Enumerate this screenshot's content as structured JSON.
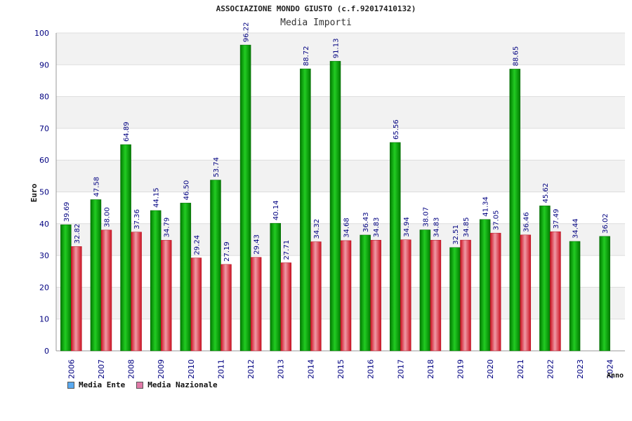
{
  "chart_data": {
    "type": "bar",
    "title": "ASSOCIAZIONE MONDO GIUSTO (c.f.92017410132)",
    "subtitle": "Media Importi",
    "xlabel": "Anno",
    "ylabel": "Euro",
    "ylim": [
      0,
      100
    ],
    "yticks": [
      "0",
      "10",
      "20",
      "30",
      "40",
      "50",
      "60",
      "70",
      "80",
      "90",
      "100"
    ],
    "grid": true,
    "legend_position": "bottom-left",
    "categories": [
      "2006",
      "2007",
      "2008",
      "2009",
      "2010",
      "2011",
      "2012",
      "2013",
      "2014",
      "2015",
      "2016",
      "2017",
      "2018",
      "2019",
      "2020",
      "2021",
      "2022",
      "2023",
      "2024"
    ],
    "series": [
      {
        "name": "Media Ente",
        "color": "#00a000",
        "legend_color": "#5aaaf0",
        "values": [
          39.69,
          47.58,
          64.89,
          44.15,
          46.5,
          53.74,
          96.22,
          40.14,
          88.72,
          91.13,
          36.43,
          65.56,
          38.07,
          32.51,
          41.34,
          88.65,
          45.62,
          34.44,
          36.02
        ],
        "labels": [
          "39.69",
          "47.58",
          "64.89",
          "44.15",
          "46.50",
          "53.74",
          "96.22",
          "40.14",
          "88.72",
          "91.13",
          "36.43",
          "65.56",
          "38.07",
          "32.51",
          "41.34",
          "88.65",
          "45.62",
          "34.44",
          "36.02"
        ]
      },
      {
        "name": "Media Nazionale",
        "color": "#e02030",
        "legend_color": "#e07aa8",
        "values": [
          32.82,
          38.0,
          37.36,
          34.79,
          29.24,
          27.19,
          29.43,
          27.71,
          34.32,
          34.68,
          34.83,
          34.94,
          34.83,
          34.85,
          37.05,
          36.46,
          37.49,
          null,
          null
        ],
        "labels": [
          "32.82",
          "38.00",
          "37.36",
          "34.79",
          "29.24",
          "27.19",
          "29.43",
          "27.71",
          "34.32",
          "34.68",
          "34.83",
          "34.94",
          "34.83",
          "34.85",
          "37.05",
          "36.46",
          "37.49",
          null,
          null
        ]
      }
    ]
  }
}
